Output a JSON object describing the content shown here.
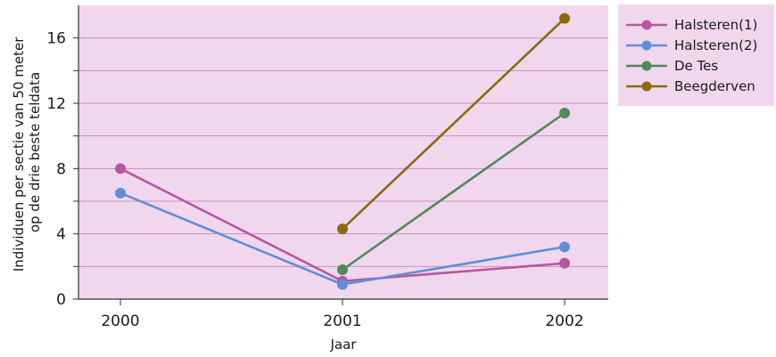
{
  "chart_data": {
    "type": "line",
    "title": "",
    "xlabel": "Jaar",
    "ylabel_lines": [
      "Individuen per sectie van 50 meter",
      "op de drie beste teldata"
    ],
    "x_categories": [
      "2000",
      "2001",
      "2002"
    ],
    "ylim": [
      0,
      18
    ],
    "yticks": [
      0,
      4,
      8,
      12,
      16
    ],
    "grid": true,
    "legend_position": "right",
    "series": [
      {
        "name": "Halsteren(1)",
        "color": "#b8579e",
        "values": [
          8.0,
          1.1,
          2.2
        ]
      },
      {
        "name": "Halsteren(2)",
        "color": "#5e8fd8",
        "values": [
          6.5,
          0.9,
          3.2
        ]
      },
      {
        "name": "De Tes",
        "color": "#4f8a5a",
        "values": [
          null,
          1.8,
          11.4
        ]
      },
      {
        "name": "Beegderven",
        "color": "#8a6a10",
        "values": [
          null,
          4.3,
          17.2
        ]
      }
    ]
  },
  "colors": {
    "plot_background": "#f1d7ee",
    "legend_background": "#f1d7ee",
    "gridline": "#c88fbf",
    "axis": "#333333"
  }
}
